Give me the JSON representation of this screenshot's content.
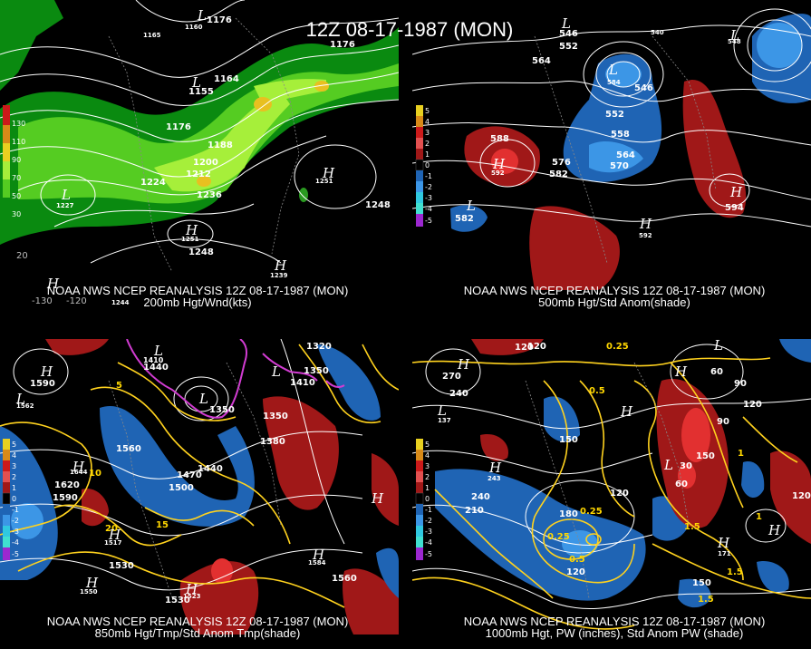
{
  "title": "12Z 08-17-1987 (MON)",
  "panels": [
    {
      "id": "p200",
      "caption_line1": "NOAA NWS NCEP REANALYSIS 12Z 08-17-1987 (MON)",
      "caption_line2": "200mb Hgt/Wnd(kts)",
      "legend": [
        "130",
        "110",
        "90",
        "70",
        "50",
        "30"
      ],
      "contours": [
        "1176",
        "1176",
        "1155",
        "1164",
        "1165",
        "1176",
        "1188",
        "1200",
        "1212",
        "1224",
        "1236",
        "1248",
        "1251",
        "1227",
        "1251",
        "1248",
        "1239",
        "1244",
        "1160"
      ],
      "highs_lows": [
        "L",
        "L",
        "H",
        "H",
        "H",
        "L",
        "H"
      ],
      "axis": [
        "-130",
        "-120",
        "20"
      ]
    },
    {
      "id": "p500",
      "caption_line1": "NOAA NWS NCEP REANALYSIS 12Z 08-17-1987 (MON)",
      "caption_line2": "500mb Hgt/Std Anom(shade)",
      "legend": [
        "5",
        "4",
        "3",
        "2",
        "1",
        "0",
        "-1",
        "-2",
        "-3",
        "-4",
        "-5"
      ],
      "contours": [
        "552",
        "546",
        "564",
        "552",
        "558",
        "564",
        "570",
        "576",
        "582",
        "588",
        "592",
        "594",
        "582",
        "546",
        "584",
        "592",
        "540",
        "548"
      ],
      "highs_lows": [
        "L",
        "L",
        "H",
        "H",
        "H",
        "L",
        "L"
      ],
      "axis": []
    },
    {
      "id": "p850",
      "caption_line1": "NOAA NWS NCEP REANALYSIS 12Z 08-17-1987 (MON)",
      "caption_line2": "850mb Hgt/Tmp/Std Anom Tmp(shade)",
      "legend": [
        "5",
        "4",
        "3",
        "2",
        "1",
        "0",
        "-1",
        "-2",
        "-3",
        "-4",
        "-5"
      ],
      "contours": [
        "1590",
        "1562",
        "1440",
        "1410",
        "1350",
        "1320",
        "1350",
        "1410",
        "1380",
        "1350",
        "1560",
        "1470",
        "1500",
        "1440",
        "1620",
        "1590",
        "1644",
        "1517",
        "1530",
        "1550",
        "1584",
        "1560",
        "1530",
        "1523",
        "10",
        "5",
        "15",
        "20"
      ],
      "highs_lows": [
        "H",
        "L",
        "L",
        "L",
        "H",
        "H",
        "L",
        "H",
        "H",
        "H",
        "H"
      ],
      "axis": []
    },
    {
      "id": "p1000",
      "caption_line1": "NOAA NWS NCEP REANALYSIS 12Z 08-17-1987 (MON)",
      "caption_line2": "1000mb Hgt, PW (inches), Std Anom PW (shade)",
      "legend": [
        "5",
        "4",
        "3",
        "2",
        "1",
        "0",
        "-1",
        "-2",
        "-3",
        "-4",
        "-5"
      ],
      "contours": [
        "270",
        "240",
        "120",
        "150",
        "120",
        "180",
        "210",
        "240",
        "90",
        "120",
        "150",
        "30",
        "60",
        "90",
        "0.25",
        "0.5",
        "0.25",
        "0.5",
        "0.25",
        "1",
        "1.5",
        "1",
        "1.5",
        "1.5",
        "120",
        "171",
        "120",
        "150",
        "120",
        "60",
        "137",
        "243"
      ],
      "highs_lows": [
        "H",
        "L",
        "H",
        "H",
        "H",
        "L",
        "H",
        "H",
        "L"
      ],
      "axis": []
    }
  ],
  "colors": {
    "green_light": "#a6ef3a",
    "green_mid": "#55cc22",
    "green_dark": "#0a8a10",
    "anom_red": "#a01818",
    "anom_red_bright": "#e23030",
    "anom_blue": "#1f64b4",
    "anom_blue_light": "#3c96e6",
    "yellow": "#ffd21e",
    "magenta": "#d23cd2"
  }
}
